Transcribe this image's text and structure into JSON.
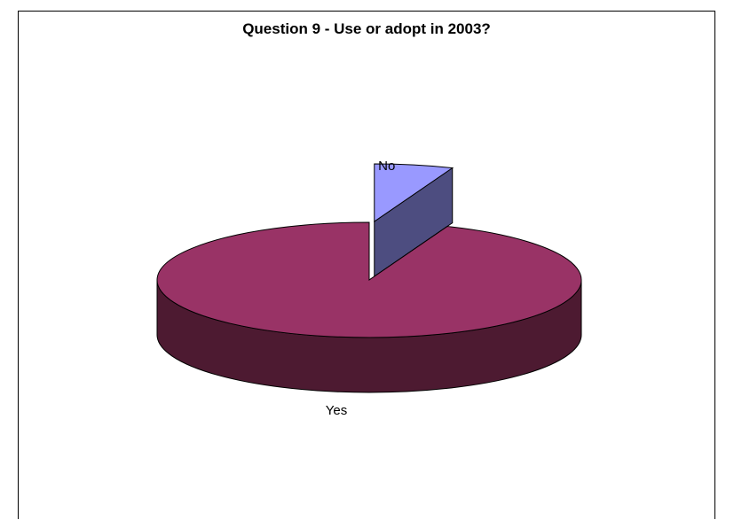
{
  "chart_data": {
    "type": "pie",
    "title": "Question 9 - Use or adopt in 2003?",
    "categories": [
      "Yes",
      "No"
    ],
    "values": [
      94,
      6
    ],
    "exploded": [
      "No"
    ],
    "three_d": true,
    "legend": "none",
    "colors": {
      "Yes": {
        "top": "#993366",
        "side": "#4d1a31"
      },
      "No": {
        "top": "#9999ff",
        "side": "#4d4d80"
      }
    }
  }
}
